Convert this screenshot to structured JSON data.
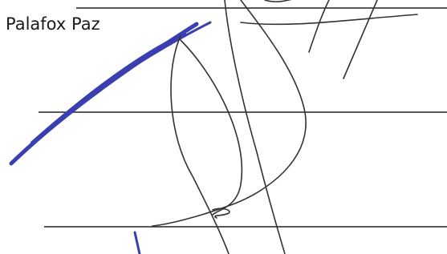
{
  "header": {
    "name": "Palafox Paz"
  }
}
